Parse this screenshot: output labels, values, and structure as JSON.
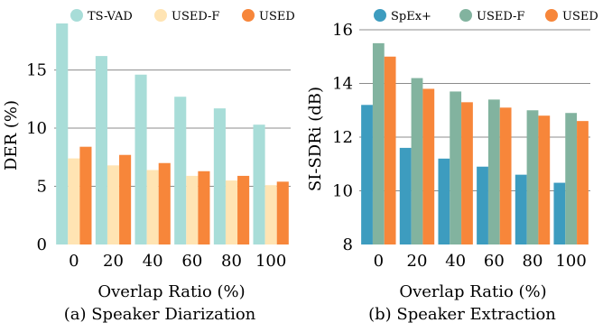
{
  "chart_data": [
    {
      "type": "bar",
      "xlabel": "Overlap Ratio (%)",
      "ylabel": "DER (%)",
      "caption": "(a) Speaker Diarization",
      "categories": [
        "0",
        "20",
        "40",
        "60",
        "80",
        "100"
      ],
      "ylim": [
        0,
        19
      ],
      "yticks": [
        0,
        5,
        10,
        15
      ],
      "grid": true,
      "legend": "top",
      "series": [
        {
          "name": "TS-VAD",
          "color": "#a8ddd8",
          "values": [
            19.0,
            16.2,
            14.6,
            12.7,
            11.7,
            10.3
          ]
        },
        {
          "name": "USED-F",
          "color": "#ffe4b3",
          "values": [
            7.4,
            6.8,
            6.4,
            5.9,
            5.5,
            5.1
          ]
        },
        {
          "name": "USED",
          "color": "#f7863a",
          "values": [
            8.4,
            7.7,
            7.0,
            6.3,
            5.9,
            5.4
          ]
        }
      ]
    },
    {
      "type": "bar",
      "xlabel": "Overlap Ratio (%)",
      "ylabel": "SI-SDRi (dB)",
      "caption": "(b) Speaker Extraction",
      "categories": [
        "0",
        "20",
        "40",
        "60",
        "80",
        "100"
      ],
      "ylim": [
        8,
        16
      ],
      "yticks": [
        8,
        10,
        12,
        14,
        16
      ],
      "grid": true,
      "legend": "top",
      "series": [
        {
          "name": "SpEx+",
          "color": "#3d9cbf",
          "values": [
            13.2,
            11.6,
            11.2,
            10.9,
            10.6,
            10.3
          ]
        },
        {
          "name": "USED-F",
          "color": "#82b39f",
          "values": [
            15.5,
            14.2,
            13.7,
            13.4,
            13.0,
            12.9
          ]
        },
        {
          "name": "USED",
          "color": "#f7863a",
          "values": [
            15.0,
            13.8,
            13.3,
            13.1,
            12.8,
            12.6
          ]
        }
      ]
    }
  ]
}
